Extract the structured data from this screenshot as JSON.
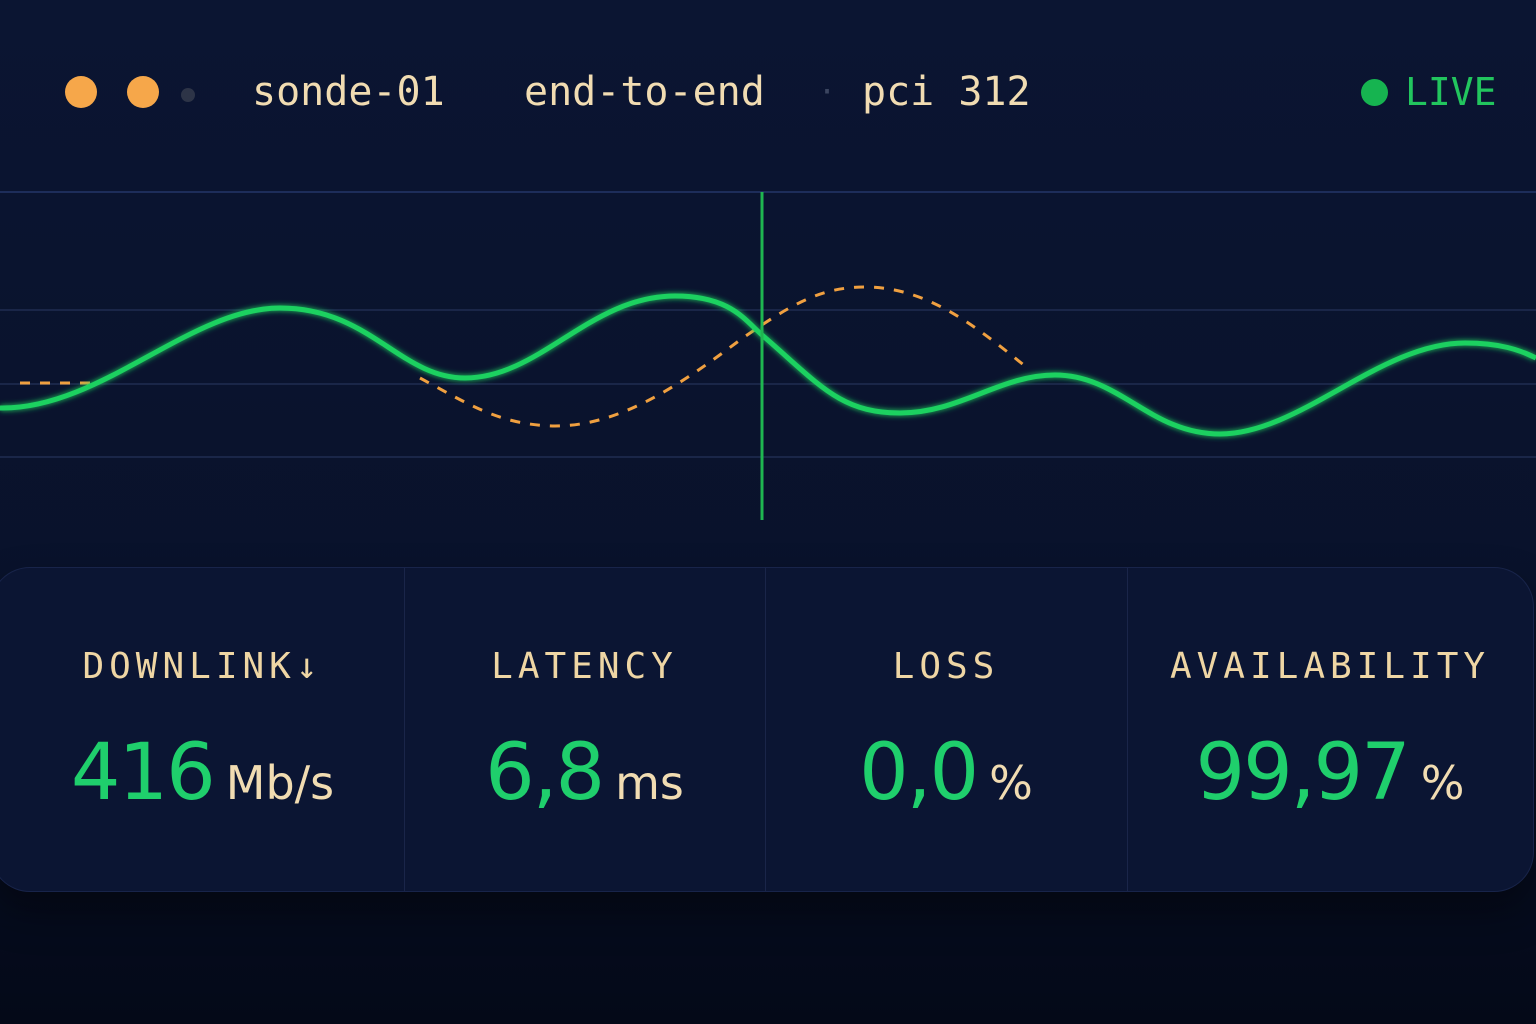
{
  "header": {
    "host": "sonde-01",
    "scope": "end-to-end",
    "separator": "·",
    "cell": "pci 312",
    "status": "LIVE"
  },
  "metrics": [
    {
      "label": "DOWNLINK↓",
      "value": "416",
      "unit": "Mb/s"
    },
    {
      "label": "LATENCY",
      "value": "6,8",
      "unit": "ms"
    },
    {
      "label": "LOSS",
      "value": "0,0",
      "unit": "%"
    },
    {
      "label": "AVAILABILITY",
      "value": "99,97",
      "unit": "%"
    }
  ]
}
